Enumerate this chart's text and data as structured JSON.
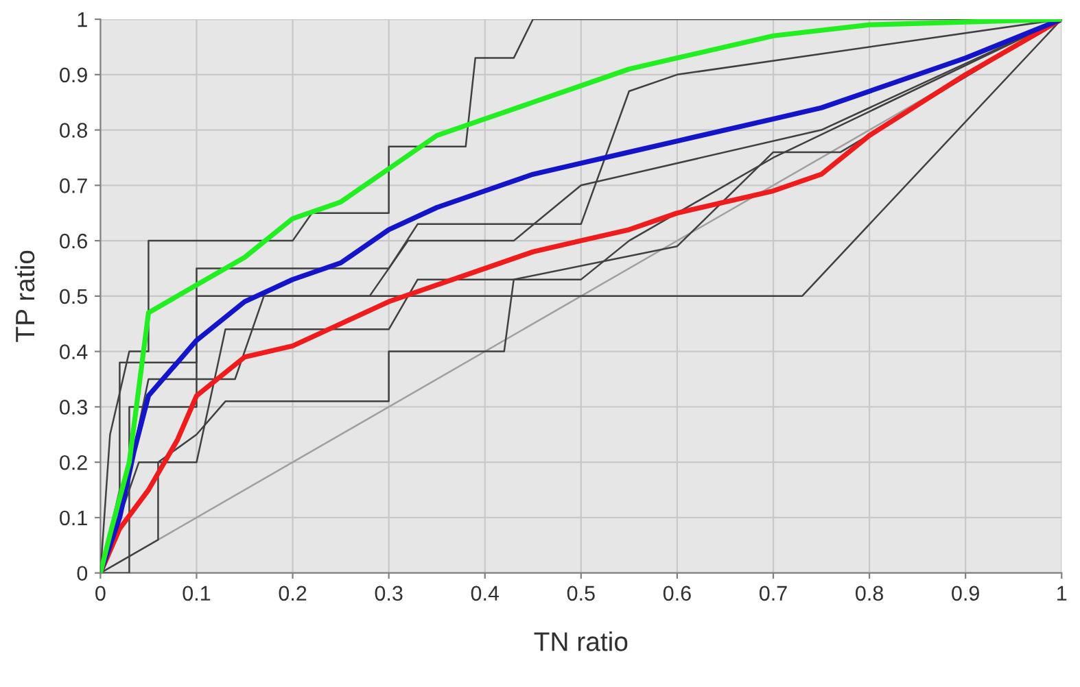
{
  "chart_data": {
    "type": "line",
    "xlabel": "TN ratio",
    "ylabel": "TP ratio",
    "xlim": [
      0,
      1
    ],
    "ylim": [
      0,
      1
    ],
    "xticks": [
      0,
      0.1,
      0.2,
      0.3,
      0.4,
      0.5,
      0.6,
      0.7,
      0.8,
      0.9,
      1
    ],
    "yticks": [
      0,
      0.1,
      0.2,
      0.3,
      0.4,
      0.5,
      0.6,
      0.7,
      0.8,
      0.9,
      1
    ],
    "grid": true,
    "legend": false,
    "marker": "none",
    "line_style": "solid",
    "series": [
      {
        "color": "#a0a0a0",
        "x": [
          0,
          1
        ],
        "values": [
          0,
          1
        ]
      },
      {
        "color": "#404040",
        "x": [
          0,
          0.01,
          0.03,
          0.05,
          0.05,
          0.2,
          0.22,
          0.3,
          0.3,
          0.38,
          0.39,
          0.43,
          0.45,
          1
        ],
        "values": [
          0,
          0.25,
          0.4,
          0.4,
          0.6,
          0.6,
          0.65,
          0.65,
          0.77,
          0.77,
          0.93,
          0.93,
          1,
          1
        ]
      },
      {
        "color": "#404040",
        "x": [
          0,
          0.03,
          0.03,
          0.1,
          0.1,
          0.73,
          1
        ],
        "values": [
          0,
          0,
          0.3,
          0.3,
          0.5,
          0.5,
          1
        ]
      },
      {
        "color": "#404040",
        "x": [
          0,
          0.02,
          0.02,
          0.1,
          0.1,
          0.3,
          0.33,
          0.5,
          0.55,
          0.6,
          1
        ],
        "values": [
          0,
          0.15,
          0.38,
          0.38,
          0.55,
          0.55,
          0.63,
          0.63,
          0.87,
          0.9,
          1
        ]
      },
      {
        "color": "#404040",
        "x": [
          0,
          0.04,
          0.1,
          0.13,
          0.3,
          0.33,
          0.5,
          0.55,
          0.7,
          1
        ],
        "values": [
          0,
          0.2,
          0.2,
          0.44,
          0.44,
          0.53,
          0.53,
          0.6,
          0.75,
          1
        ]
      },
      {
        "color": "#404040",
        "x": [
          0,
          0.06,
          0.06,
          0.1,
          0.13,
          0.3,
          0.3,
          0.42,
          0.43,
          0.6,
          0.7,
          0.77,
          1
        ],
        "values": [
          0,
          0.06,
          0.2,
          0.25,
          0.31,
          0.31,
          0.4,
          0.4,
          0.53,
          0.59,
          0.76,
          0.76,
          1
        ]
      },
      {
        "color": "#404040",
        "x": [
          0,
          0.02,
          0.05,
          0.14,
          0.17,
          0.28,
          0.32,
          0.43,
          0.5,
          0.75,
          1
        ],
        "values": [
          0,
          0.1,
          0.35,
          0.35,
          0.5,
          0.5,
          0.6,
          0.6,
          0.7,
          0.8,
          1
        ]
      },
      {
        "color": "#ee1c1c",
        "x": [
          0,
          0.02,
          0.05,
          0.08,
          0.1,
          0.15,
          0.2,
          0.25,
          0.3,
          0.35,
          0.4,
          0.45,
          0.5,
          0.55,
          0.6,
          0.7,
          0.75,
          0.8,
          0.9,
          1
        ],
        "values": [
          0,
          0.08,
          0.15,
          0.24,
          0.32,
          0.39,
          0.41,
          0.45,
          0.49,
          0.52,
          0.55,
          0.58,
          0.6,
          0.62,
          0.65,
          0.69,
          0.72,
          0.79,
          0.9,
          1
        ]
      },
      {
        "color": "#1414c8",
        "x": [
          0,
          0.02,
          0.035,
          0.05,
          0.1,
          0.15,
          0.2,
          0.25,
          0.3,
          0.35,
          0.4,
          0.45,
          0.5,
          0.55,
          0.6,
          0.7,
          0.75,
          0.8,
          0.9,
          1
        ],
        "values": [
          0,
          0.1,
          0.22,
          0.32,
          0.42,
          0.49,
          0.53,
          0.56,
          0.62,
          0.66,
          0.69,
          0.72,
          0.74,
          0.76,
          0.78,
          0.82,
          0.84,
          0.87,
          0.93,
          1
        ]
      },
      {
        "color": "#22ee22",
        "x": [
          0,
          0.01,
          0.03,
          0.05,
          0.1,
          0.15,
          0.2,
          0.25,
          0.3,
          0.35,
          0.4,
          0.45,
          0.5,
          0.55,
          0.6,
          0.7,
          0.8,
          0.9,
          1
        ],
        "values": [
          0,
          0.07,
          0.2,
          0.47,
          0.52,
          0.57,
          0.64,
          0.67,
          0.73,
          0.79,
          0.82,
          0.85,
          0.88,
          0.91,
          0.93,
          0.97,
          0.99,
          0.995,
          1
        ]
      }
    ]
  }
}
